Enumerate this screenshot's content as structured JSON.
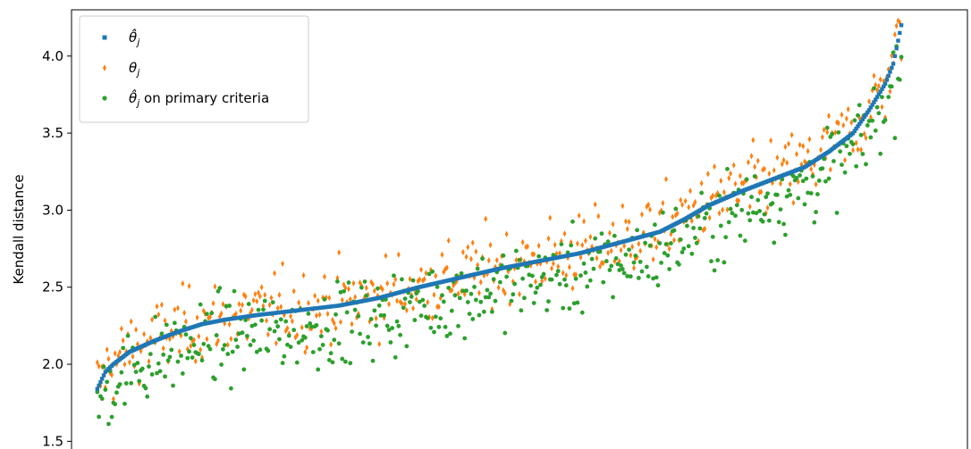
{
  "chart_data": {
    "type": "scatter",
    "ylabel": "Kendall distance",
    "xlabel": "",
    "ylim": [
      1.45,
      4.3
    ],
    "xlim": [
      -16,
      540
    ],
    "yticks": [
      "1.5",
      "2.0",
      "2.5",
      "3.0",
      "3.5",
      "4.0"
    ],
    "grid": false,
    "legend_position": "top-left",
    "legend": {
      "theta_hat": "θ̂",
      "theta": "θ",
      "subscript": "j",
      "primary_suffix": " on primary criteria"
    },
    "colors": {
      "theta_hat": "#1f77b4",
      "theta": "#ff7f0e",
      "primary": "#2ca02c"
    },
    "series": [
      {
        "id": "theta_hat",
        "marker": "square",
        "n": 500,
        "values_by_rank_quantile": [
          [
            0.0,
            1.84
          ],
          [
            0.01,
            1.95
          ],
          [
            0.02,
            2.0
          ],
          [
            0.04,
            2.08
          ],
          [
            0.07,
            2.15
          ],
          [
            0.1,
            2.21
          ],
          [
            0.13,
            2.26
          ],
          [
            0.16,
            2.29
          ],
          [
            0.2,
            2.32
          ],
          [
            0.25,
            2.35
          ],
          [
            0.3,
            2.38
          ],
          [
            0.35,
            2.43
          ],
          [
            0.4,
            2.5
          ],
          [
            0.45,
            2.56
          ],
          [
            0.5,
            2.62
          ],
          [
            0.55,
            2.67
          ],
          [
            0.6,
            2.72
          ],
          [
            0.65,
            2.79
          ],
          [
            0.7,
            2.86
          ],
          [
            0.73,
            2.94
          ],
          [
            0.76,
            3.03
          ],
          [
            0.8,
            3.12
          ],
          [
            0.84,
            3.2
          ],
          [
            0.88,
            3.28
          ],
          [
            0.91,
            3.38
          ],
          [
            0.94,
            3.5
          ],
          [
            0.96,
            3.65
          ],
          [
            0.98,
            3.82
          ],
          [
            0.99,
            3.95
          ],
          [
            1.0,
            4.2
          ]
        ]
      },
      {
        "id": "theta",
        "marker": "thin_diamond",
        "n": 500,
        "mean_offset": 0.01,
        "spread": 0.22
      },
      {
        "id": "primary",
        "marker": "circle",
        "n": 500,
        "mean_offset": -0.12,
        "spread": 0.26
      }
    ]
  }
}
